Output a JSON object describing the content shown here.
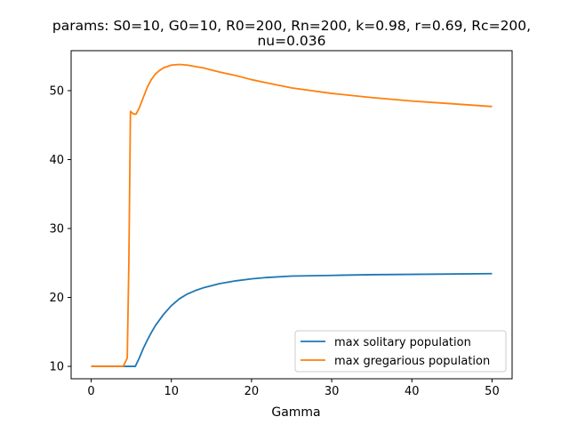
{
  "chart_data": {
    "type": "line",
    "title_lines": [
      "params: S0=10, G0=10, R0=200, Rn=200, k=0.98, r=0.69, Rc=200,",
      "nu=0.036"
    ],
    "xlabel": "Gamma",
    "ylabel": "",
    "xlim": [
      -2.5,
      52.5
    ],
    "ylim": [
      8.2,
      55.8
    ],
    "x_ticks": [
      0,
      10,
      20,
      30,
      40,
      50
    ],
    "y_ticks": [
      10,
      20,
      30,
      40,
      50
    ],
    "grid": false,
    "legend_position": "lower-right",
    "series": [
      {
        "name": "max solitary population",
        "color": "#1f77b4",
        "x": [
          0,
          1,
          2,
          3,
          4,
          5,
          5.5,
          6,
          6.5,
          7,
          7.5,
          8,
          9,
          10,
          11,
          12,
          13,
          14,
          15,
          16,
          18,
          20,
          22,
          25,
          30,
          35,
          40,
          45,
          50
        ],
        "y": [
          10,
          10,
          10,
          10,
          10,
          10,
          10,
          11.2,
          12.6,
          13.8,
          14.9,
          15.9,
          17.5,
          18.8,
          19.8,
          20.5,
          21.0,
          21.4,
          21.7,
          22.0,
          22.4,
          22.7,
          22.9,
          23.1,
          23.2,
          23.3,
          23.35,
          23.4,
          23.45
        ]
      },
      {
        "name": "max gregarious population",
        "color": "#ff7f0e",
        "x": [
          0,
          1,
          2,
          3,
          4,
          4.5,
          4.7,
          4.9,
          5.1,
          5.3,
          5.6,
          6,
          6.5,
          7,
          7.5,
          8,
          8.5,
          9,
          10,
          11,
          12,
          13,
          14,
          15,
          16,
          18,
          20,
          22,
          25,
          30,
          35,
          40,
          45,
          50
        ],
        "y": [
          10,
          10,
          10,
          10,
          10,
          11.2,
          25,
          47,
          46.8,
          46.6,
          46.6,
          47.5,
          49.0,
          50.5,
          51.6,
          52.4,
          52.9,
          53.3,
          53.7,
          53.8,
          53.7,
          53.5,
          53.3,
          53.0,
          52.7,
          52.2,
          51.6,
          51.1,
          50.4,
          49.6,
          49.0,
          48.5,
          48.1,
          47.7
        ]
      }
    ]
  }
}
